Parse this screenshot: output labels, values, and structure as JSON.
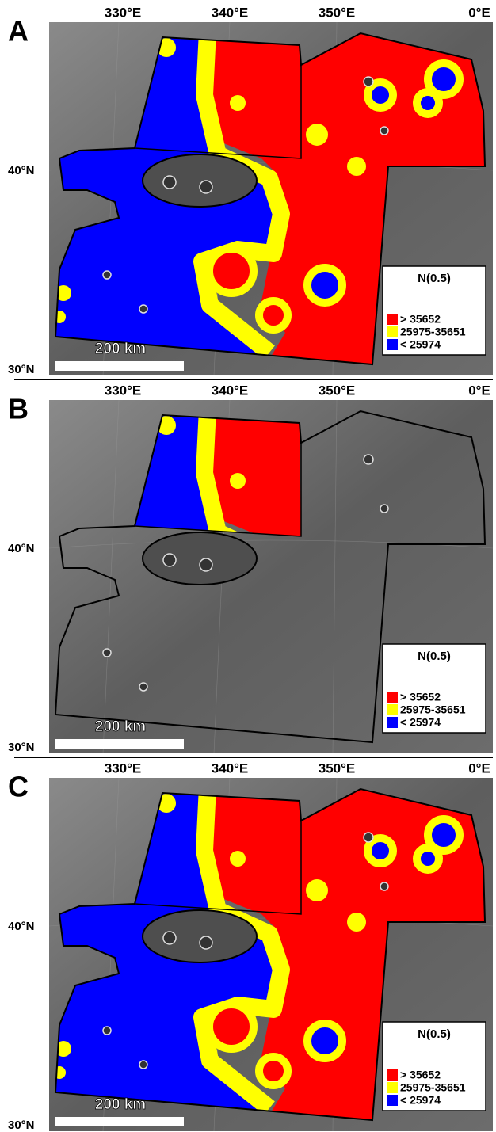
{
  "panels": [
    {
      "label": "A",
      "longitude_labels": [
        "330°E",
        "340°E",
        "350°E",
        "0°E"
      ],
      "latitude_labels": [
        "40°N",
        "30°N"
      ],
      "legend": {
        "title": "N(0.5)",
        "entries": [
          {
            "label": "> 35652",
            "color": "#ff0000"
          },
          {
            "label": "25975-35651",
            "color": "#ffff00"
          },
          {
            "label": "< 25974",
            "color": "#0000ff"
          }
        ]
      },
      "scale_bar": "200 km"
    },
    {
      "label": "B",
      "longitude_labels": [
        "330°E",
        "340°E",
        "350°E",
        "0°E"
      ],
      "latitude_labels": [
        "40°N",
        "30°N"
      ],
      "legend": {
        "title": "N(0.5)",
        "entries": [
          {
            "label": "> 35652",
            "color": "#ff0000"
          },
          {
            "label": "25975-35651",
            "color": "#ffff00"
          },
          {
            "label": "< 25974",
            "color": "#0000ff"
          }
        ]
      },
      "scale_bar": "200 km"
    },
    {
      "label": "C",
      "longitude_labels": [
        "330°E",
        "340°E",
        "350°E",
        "0°E"
      ],
      "latitude_labels": [
        "40°N",
        "30°N"
      ],
      "legend": {
        "title": "N(0.5)",
        "entries": [
          {
            "label": "> 35652",
            "color": "#ff0000"
          },
          {
            "label": "25975-35651",
            "color": "#ffff00"
          },
          {
            "label": "< 25974",
            "color": "#0000ff"
          }
        ]
      },
      "scale_bar": "200 km"
    }
  ]
}
